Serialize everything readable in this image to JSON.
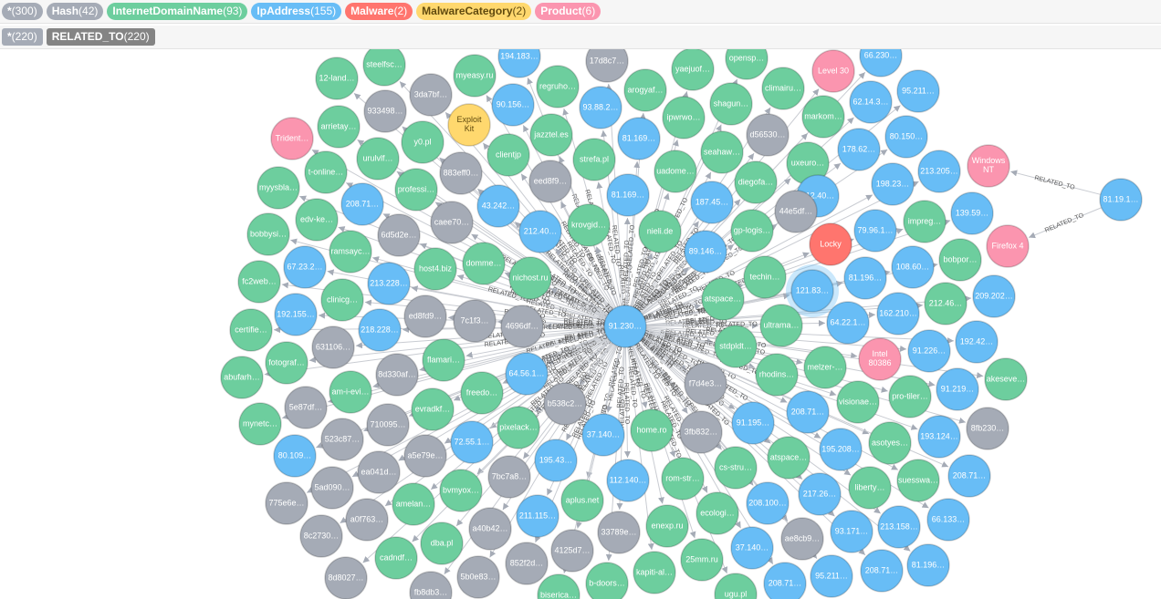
{
  "header": {
    "node_labels": [
      {
        "name": "*",
        "count": "(300)",
        "color": "#A5ABB6",
        "text_color": "#ffffff"
      },
      {
        "name": "Hash",
        "count": "(42)",
        "color": "#A5ABB6",
        "text_color": "#ffffff"
      },
      {
        "name": "InternetDomainName",
        "count": "(93)",
        "color": "#6DCE9E",
        "text_color": "#ffffff"
      },
      {
        "name": "IpAddress",
        "count": "(155)",
        "color": "#68BDF6",
        "text_color": "#ffffff"
      },
      {
        "name": "Malware",
        "count": "(2)",
        "color": "#FF756E",
        "text_color": "#ffffff"
      },
      {
        "name": "MalwareCategory",
        "count": "(2)",
        "color": "#FFD86E",
        "text_color": "#604A0E"
      },
      {
        "name": "Product",
        "count": "(6)",
        "color": "#FB95AF",
        "text_color": "#ffffff"
      }
    ],
    "relationship_types": [
      {
        "name": "*",
        "count": "(220)",
        "color": "#A5ABB6"
      },
      {
        "name": "RELATED_TO",
        "count": "(220)",
        "color": "#848484"
      }
    ]
  },
  "graph": {
    "hub": 0,
    "edge_label": "RELATED_TO",
    "nodes": [
      {
        "label": "91.230…",
        "label_type": "IpAddress"
      },
      {
        "label": "12-land…",
        "label_type": "InternetDomainName"
      },
      {
        "label": "steelfsc…",
        "label_type": "InternetDomainName"
      },
      {
        "label": "myeasy.ru",
        "label_type": "InternetDomainName"
      },
      {
        "label": "194.183…",
        "label_type": "IpAddress"
      },
      {
        "label": "17d8c7…",
        "label_type": "Hash"
      },
      {
        "label": "opensp…",
        "label_type": "InternetDomainName"
      },
      {
        "label": "66.230…",
        "label_type": "IpAddress"
      },
      {
        "label": "3da7bf…",
        "label_type": "Hash"
      },
      {
        "label": "regruho…",
        "label_type": "InternetDomainName"
      },
      {
        "label": "arogyaf…",
        "label_type": "InternetDomainName"
      },
      {
        "label": "yaejuof…",
        "label_type": "InternetDomainName"
      },
      {
        "label": "climairu…",
        "label_type": "InternetDomainName"
      },
      {
        "label": "Level 30",
        "label_type": "Product"
      },
      {
        "label": "95.211…",
        "label_type": "IpAddress"
      },
      {
        "label": "933498…",
        "label_type": "Hash"
      },
      {
        "label": "90.156…",
        "label_type": "IpAddress"
      },
      {
        "label": "93.88.2…",
        "label_type": "IpAddress"
      },
      {
        "label": "ipwrwo…",
        "label_type": "InternetDomainName"
      },
      {
        "label": "shagun…",
        "label_type": "InternetDomainName"
      },
      {
        "label": "markom…",
        "label_type": "InternetDomainName"
      },
      {
        "label": "62.14.3…",
        "label_type": "IpAddress"
      },
      {
        "label": "arrietay…",
        "label_type": "InternetDomainName"
      },
      {
        "label": "Exploit Kit",
        "label_type": "MalwareCategory"
      },
      {
        "label": "Trident…",
        "label_type": "Product"
      },
      {
        "label": "y0.pl",
        "label_type": "InternetDomainName"
      },
      {
        "label": "jazztel.es",
        "label_type": "InternetDomainName"
      },
      {
        "label": "81.169…",
        "label_type": "IpAddress"
      },
      {
        "label": "d56530…",
        "label_type": "Hash"
      },
      {
        "label": "80.150…",
        "label_type": "IpAddress"
      },
      {
        "label": "urulvlf…",
        "label_type": "InternetDomainName"
      },
      {
        "label": "t-online…",
        "label_type": "InternetDomainName"
      },
      {
        "label": "clientjp",
        "label_type": "InternetDomainName"
      },
      {
        "label": "strefa.pl",
        "label_type": "InternetDomainName"
      },
      {
        "label": "uadome…",
        "label_type": "InternetDomainName"
      },
      {
        "label": "seahaw…",
        "label_type": "InternetDomainName"
      },
      {
        "label": "uxeuro…",
        "label_type": "InternetDomainName"
      },
      {
        "label": "178.62…",
        "label_type": "IpAddress"
      },
      {
        "label": "213.205…",
        "label_type": "IpAddress"
      },
      {
        "label": "Windows NT",
        "label_type": "Product",
        "from": 48
      },
      {
        "label": "myysbla…",
        "label_type": "InternetDomainName"
      },
      {
        "label": "883eff0…",
        "label_type": "Hash"
      },
      {
        "label": "professi…",
        "label_type": "InternetDomainName"
      },
      {
        "label": "eed8f9…",
        "label_type": "Hash"
      },
      {
        "label": "81.169…",
        "label_type": "IpAddress"
      },
      {
        "label": "diegofa…",
        "label_type": "InternetDomainName"
      },
      {
        "label": "198.23…",
        "label_type": "IpAddress"
      },
      {
        "label": "208.71…",
        "label_type": "IpAddress"
      },
      {
        "label": "81.19.1…",
        "label_type": "IpAddress",
        "from": null
      },
      {
        "label": "43.242…",
        "label_type": "IpAddress"
      },
      {
        "label": "187.45…",
        "label_type": "IpAddress"
      },
      {
        "label": "212.40…",
        "label_type": "IpAddress"
      },
      {
        "label": "44e5df…",
        "label_type": "Hash"
      },
      {
        "label": "edv-ke…",
        "label_type": "InternetDomainName"
      },
      {
        "label": "caee70…",
        "label_type": "Hash"
      },
      {
        "label": "212.40…",
        "label_type": "IpAddress"
      },
      {
        "label": "krovgid…",
        "label_type": "InternetDomainName"
      },
      {
        "label": "nieli.de",
        "label_type": "InternetDomainName"
      },
      {
        "label": "gp-logis…",
        "label_type": "InternetDomainName"
      },
      {
        "label": "79.96.1…",
        "label_type": "IpAddress"
      },
      {
        "label": "impreg…",
        "label_type": "InternetDomainName"
      },
      {
        "label": "139.59…",
        "label_type": "IpAddress"
      },
      {
        "label": "bobbysi…",
        "label_type": "InternetDomainName"
      },
      {
        "label": "6d5d2e…",
        "label_type": "Hash"
      },
      {
        "label": "ramsayc…",
        "label_type": "InternetDomainName"
      },
      {
        "label": "Locky",
        "label_type": "Malware"
      },
      {
        "label": "Firefox 4",
        "label_type": "Product",
        "from": 48
      },
      {
        "label": "89.146…",
        "label_type": "IpAddress"
      },
      {
        "label": "domme…",
        "label_type": "InternetDomainName"
      },
      {
        "label": "host4.biz",
        "label_type": "InternetDomainName"
      },
      {
        "label": "67.23.2…",
        "label_type": "IpAddress"
      },
      {
        "label": "bobpor…",
        "label_type": "InternetDomainName"
      },
      {
        "label": "108.60…",
        "label_type": "IpAddress"
      },
      {
        "label": "fc2web…",
        "label_type": "InternetDomainName"
      },
      {
        "label": "nichost.ru",
        "label_type": "InternetDomainName"
      },
      {
        "label": "techin…",
        "label_type": "InternetDomainName"
      },
      {
        "label": "81.196…",
        "label_type": "IpAddress"
      },
      {
        "label": "213.228…",
        "label_type": "IpAddress"
      },
      {
        "label": "atspace…",
        "label_type": "InternetDomainName"
      },
      {
        "label": "121.83…",
        "label_type": "IpAddress",
        "selected": true
      },
      {
        "label": "clinicg…",
        "label_type": "InternetDomainName"
      },
      {
        "label": "212.46…",
        "label_type": "InternetDomainName"
      },
      {
        "label": "209.202…",
        "label_type": "IpAddress"
      },
      {
        "label": "192.155…",
        "label_type": "IpAddress"
      },
      {
        "label": "ed8fd9…",
        "label_type": "Hash"
      },
      {
        "label": "7c1f3…",
        "label_type": "Hash"
      },
      {
        "label": "4696df…",
        "label_type": "Hash"
      },
      {
        "label": "162.210…",
        "label_type": "IpAddress"
      },
      {
        "label": "ultrama…",
        "label_type": "InternetDomainName"
      },
      {
        "label": "64.22.1…",
        "label_type": "IpAddress"
      },
      {
        "label": "certifie…",
        "label_type": "InternetDomainName"
      },
      {
        "label": "218.228…",
        "label_type": "IpAddress"
      },
      {
        "label": "stdpldt…",
        "label_type": "InternetDomainName"
      },
      {
        "label": "192.42…",
        "label_type": "IpAddress"
      },
      {
        "label": "631106…",
        "label_type": "Hash"
      },
      {
        "label": "flamari…",
        "label_type": "InternetDomainName"
      },
      {
        "label": "Intel 80386",
        "label_type": "Product"
      },
      {
        "label": "91.226…",
        "label_type": "IpAddress"
      },
      {
        "label": "fotograf…",
        "label_type": "InternetDomainName"
      },
      {
        "label": "abufarh…",
        "label_type": "InternetDomainName"
      },
      {
        "label": "8d330af…",
        "label_type": "Hash"
      },
      {
        "label": "64.56.1…",
        "label_type": "IpAddress"
      },
      {
        "label": "rhodins…",
        "label_type": "InternetDomainName"
      },
      {
        "label": "melzer-…",
        "label_type": "InternetDomainName"
      },
      {
        "label": "akeseve…",
        "label_type": "InternetDomainName"
      },
      {
        "label": "f7d4e3…",
        "label_type": "Hash"
      },
      {
        "label": "am-i-evi…",
        "label_type": "InternetDomainName"
      },
      {
        "label": "freedo…",
        "label_type": "InternetDomainName"
      },
      {
        "label": "b538c2…",
        "label_type": "Hash"
      },
      {
        "label": "91.219…",
        "label_type": "IpAddress"
      },
      {
        "label": "visionae…",
        "label_type": "InternetDomainName"
      },
      {
        "label": "pro-tiler…",
        "label_type": "InternetDomainName"
      },
      {
        "label": "5e87df…",
        "label_type": "Hash"
      },
      {
        "label": "evradkf…",
        "label_type": "InternetDomainName"
      },
      {
        "label": "208.71…",
        "label_type": "IpAddress"
      },
      {
        "label": "mynetc…",
        "label_type": "InternetDomainName"
      },
      {
        "label": "710095…",
        "label_type": "Hash"
      },
      {
        "label": "home.ro",
        "label_type": "InternetDomainName"
      },
      {
        "label": "37.140…",
        "label_type": "IpAddress"
      },
      {
        "label": "91.195…",
        "label_type": "IpAddress"
      },
      {
        "label": "pixelack…",
        "label_type": "InternetDomainName"
      },
      {
        "label": "8fb230…",
        "label_type": "Hash"
      },
      {
        "label": "3fb832…",
        "label_type": "Hash"
      },
      {
        "label": "523c87…",
        "label_type": "Hash"
      },
      {
        "label": "193.124…",
        "label_type": "IpAddress"
      },
      {
        "label": "asotyes…",
        "label_type": "InternetDomainName"
      },
      {
        "label": "72.55.1…",
        "label_type": "IpAddress"
      },
      {
        "label": "80.109…",
        "label_type": "IpAddress"
      },
      {
        "label": "a5e79e…",
        "label_type": "Hash"
      },
      {
        "label": "atspace…",
        "label_type": "InternetDomainName"
      },
      {
        "label": "195.208…",
        "label_type": "IpAddress"
      },
      {
        "label": "195.43…",
        "label_type": "IpAddress"
      },
      {
        "label": "cs-stru…",
        "label_type": "InternetDomainName"
      },
      {
        "label": "ea041d…",
        "label_type": "Hash"
      },
      {
        "label": "7bc7a8…",
        "label_type": "Hash"
      },
      {
        "label": "208.71…",
        "label_type": "IpAddress"
      },
      {
        "label": "suesswa…",
        "label_type": "InternetDomainName"
      },
      {
        "label": "112.140…",
        "label_type": "IpAddress"
      },
      {
        "label": "rom-str…",
        "label_type": "InternetDomainName"
      },
      {
        "label": "bvmyox…",
        "label_type": "InternetDomainName"
      },
      {
        "label": "5ad090…",
        "label_type": "Hash"
      },
      {
        "label": "liberty…",
        "label_type": "InternetDomainName"
      },
      {
        "label": "775e6e…",
        "label_type": "Hash"
      },
      {
        "label": "amelan…",
        "label_type": "InternetDomainName"
      },
      {
        "label": "aplus.net",
        "label_type": "InternetDomainName"
      },
      {
        "label": "217.26…",
        "label_type": "IpAddress"
      },
      {
        "label": "208.100…",
        "label_type": "IpAddress"
      },
      {
        "label": "a0f763…",
        "label_type": "Hash"
      },
      {
        "label": "211.115…",
        "label_type": "IpAddress"
      },
      {
        "label": "ecologi…",
        "label_type": "InternetDomainName"
      },
      {
        "label": "enexp.ru",
        "label_type": "InternetDomainName"
      },
      {
        "label": "a40b42…",
        "label_type": "Hash"
      },
      {
        "label": "33789e…",
        "label_type": "Hash"
      },
      {
        "label": "213.158…",
        "label_type": "IpAddress"
      },
      {
        "label": "66.133…",
        "label_type": "IpAddress"
      },
      {
        "label": "93.171…",
        "label_type": "IpAddress"
      },
      {
        "label": "8c2730…",
        "label_type": "Hash"
      },
      {
        "label": "dba.pl",
        "label_type": "InternetDomainName"
      },
      {
        "label": "37.140…",
        "label_type": "IpAddress"
      },
      {
        "label": "ae8cb9…",
        "label_type": "Hash"
      },
      {
        "label": "4125d7…",
        "label_type": "Hash"
      },
      {
        "label": "cadndf…",
        "label_type": "InternetDomainName"
      },
      {
        "label": "25mm.ru",
        "label_type": "InternetDomainName"
      },
      {
        "label": "852f2d…",
        "label_type": "Hash"
      },
      {
        "label": "208.71…",
        "label_type": "IpAddress"
      },
      {
        "label": "81.196…",
        "label_type": "IpAddress"
      },
      {
        "label": "kapiti-al…",
        "label_type": "InternetDomainName"
      },
      {
        "label": "95.211…",
        "label_type": "IpAddress"
      },
      {
        "label": "5b0e83…",
        "label_type": "Hash"
      },
      {
        "label": "8d8027…",
        "label_type": "Hash"
      },
      {
        "label": "208.71…",
        "label_type": "IpAddress"
      },
      {
        "label": "b-doors…",
        "label_type": "InternetDomainName"
      },
      {
        "label": "fb8db3…",
        "label_type": "Hash"
      },
      {
        "label": "biserica…",
        "label_type": "InternetDomainName"
      },
      {
        "label": "ugu.pl",
        "label_type": "InternetDomainName"
      }
    ]
  }
}
